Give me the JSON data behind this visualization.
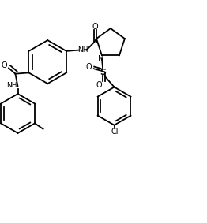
{
  "bg_color": "#ffffff",
  "line_color": "#000000",
  "line_width": 1.3,
  "figsize": [
    2.62,
    2.83
  ],
  "dpi": 100,
  "xlim": [
    0,
    10
  ],
  "ylim": [
    0,
    10.8
  ]
}
